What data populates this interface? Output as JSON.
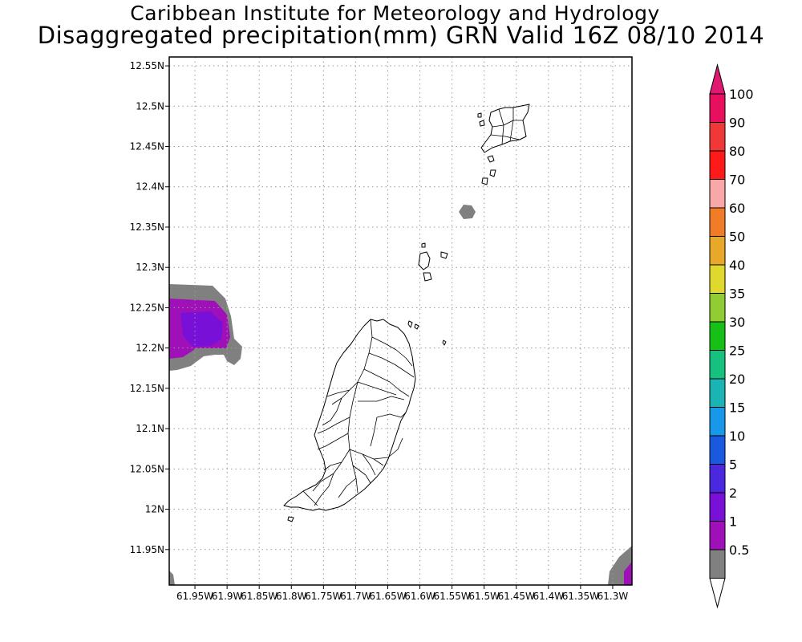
{
  "title": {
    "line1": "Caribbean Institute for Meteorology and Hydrology",
    "line2": "Disaggregated precipitation(mm) GRN Valid 16Z 08/10 2014"
  },
  "map": {
    "lon_range": [
      -61.99,
      -61.27
    ],
    "lat_range": [
      11.906,
      12.561
    ],
    "grid": true,
    "y_ticks": [
      {
        "value": 12.55,
        "label": "12.55N"
      },
      {
        "value": 12.5,
        "label": "12.5N"
      },
      {
        "value": 12.45,
        "label": "12.45N"
      },
      {
        "value": 12.4,
        "label": "12.4N"
      },
      {
        "value": 12.35,
        "label": "12.35N"
      },
      {
        "value": 12.3,
        "label": "12.3N"
      },
      {
        "value": 12.25,
        "label": "12.25N"
      },
      {
        "value": 12.2,
        "label": "12.2N"
      },
      {
        "value": 12.15,
        "label": "12.15N"
      },
      {
        "value": 12.1,
        "label": "12.1N"
      },
      {
        "value": 12.05,
        "label": "12.05N"
      },
      {
        "value": 12.0,
        "label": "12N"
      },
      {
        "value": 11.95,
        "label": "11.95N"
      }
    ],
    "x_ticks": [
      {
        "value": -61.95,
        "label": "61.95W"
      },
      {
        "value": -61.9,
        "label": "61.9W"
      },
      {
        "value": -61.85,
        "label": "61.85W"
      },
      {
        "value": -61.8,
        "label": "61.8W"
      },
      {
        "value": -61.75,
        "label": "61.75W"
      },
      {
        "value": -61.7,
        "label": "61.7W"
      },
      {
        "value": -61.65,
        "label": "61.65W"
      },
      {
        "value": -61.6,
        "label": "61.6W"
      },
      {
        "value": -61.55,
        "label": "61.55W"
      },
      {
        "value": -61.5,
        "label": "61.5W"
      },
      {
        "value": -61.45,
        "label": "61.45W"
      },
      {
        "value": -61.4,
        "label": "61.4W"
      },
      {
        "value": -61.35,
        "label": "61.35W"
      },
      {
        "value": -61.3,
        "label": "61.3W"
      }
    ]
  },
  "colorbar": {
    "labels": [
      "100",
      "90",
      "80",
      "70",
      "60",
      "50",
      "40",
      "35",
      "30",
      "25",
      "20",
      "15",
      "10",
      "5",
      "2",
      "1",
      "0.5"
    ],
    "colors": [
      "#e8105e",
      "#f03838",
      "#ff1a1a",
      "#f8a8a8",
      "#f07c28",
      "#e8a82a",
      "#e0d82c",
      "#90cc32",
      "#16c016",
      "#16c07e",
      "#1ab4b4",
      "#1898e8",
      "#1a58e0",
      "#4a28e0",
      "#7810d8",
      "#a010b8",
      "#808080"
    ],
    "top_cap_color": "#e01870",
    "bottom_cap_color": "#ffffff"
  },
  "chart_data": {
    "type": "heatmap",
    "title": "Disaggregated precipitation(mm) GRN Valid 16Z 08/10 2014",
    "xlabel": "",
    "ylabel": "",
    "units": "mm",
    "xlim": [
      -61.99,
      -61.27
    ],
    "ylim": [
      11.906,
      12.561
    ],
    "levels": [
      0.5,
      1,
      2,
      5,
      10,
      15,
      20,
      25,
      30,
      35,
      40,
      50,
      60,
      70,
      80,
      90,
      100
    ],
    "regions": [
      {
        "location": "west edge near 12.22N 61.95W",
        "range_mm": "0.5-1",
        "center": [
          -61.93,
          12.22
        ]
      },
      {
        "location": "west edge near 12.22N 61.95W",
        "range_mm": "1-2",
        "center": [
          -61.95,
          12.225
        ]
      },
      {
        "location": "isolated cell near 12.37N 61.51W",
        "range_mm": "0.5-1",
        "center": [
          -61.51,
          12.37
        ]
      },
      {
        "location": "southeast corner near 11.93N 61.28W",
        "range_mm": "0.5-1",
        "center": [
          -61.285,
          11.93
        ]
      },
      {
        "location": "southeast corner near 11.93N 61.28W",
        "range_mm": "1-2",
        "center": [
          -61.275,
          11.925
        ]
      },
      {
        "location": "southwest corner near 11.92N 61.98W",
        "range_mm": "0.5-1",
        "center": [
          -61.99,
          11.92
        ]
      }
    ]
  }
}
